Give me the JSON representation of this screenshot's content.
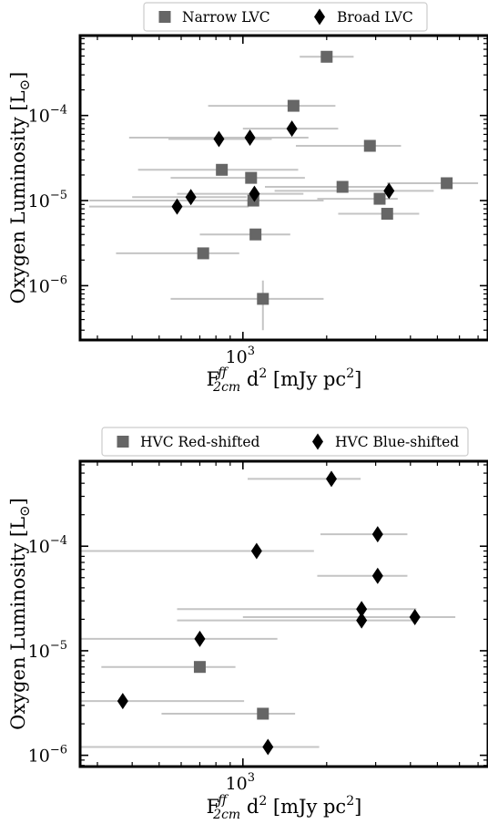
{
  "chart_data": [
    {
      "type": "scatter",
      "xscale": "log",
      "yscale": "log",
      "xlim": [
        260,
        7600
      ],
      "ylim": [
        2.3e-07,
        0.00087
      ],
      "xticks": [
        {
          "value": 1000,
          "base": "10",
          "exp": "3"
        }
      ],
      "yticks": [
        {
          "value": 1e-06,
          "base": "10",
          "exp": "−6"
        },
        {
          "value": 1e-05,
          "base": "10",
          "exp": "−5"
        },
        {
          "value": 0.0001,
          "base": "10",
          "exp": "−4"
        }
      ],
      "ylabel": {
        "main": "Oxygen Luminosity [L",
        "sym": "⊙",
        "close": "]"
      },
      "xlabel": {
        "F": "F",
        "sup": "ff",
        "sub": "2cm",
        "mid": " d",
        "d_exp": "2",
        "unit": " [mJy pc",
        "unit_exp": "2",
        "close": "]"
      },
      "legend_position": "top-center",
      "series": [
        {
          "name": "Narrow LVC",
          "marker": "square",
          "color": "#666666",
          "points": [
            {
              "x": 2000,
              "y": 0.00049,
              "xerr": [
                1600,
                2500
              ]
            },
            {
              "x": 1520,
              "y": 0.00013,
              "xerr": [
                750,
                2150
              ]
            },
            {
              "x": 2860,
              "y": 4.4e-05,
              "xerr": [
                1550,
                3700
              ]
            },
            {
              "x": 840,
              "y": 2.3e-05,
              "xerr": [
                420,
                1580
              ]
            },
            {
              "x": 1070,
              "y": 1.85e-05,
              "xerr": [
                550,
                1670
              ]
            },
            {
              "x": 2280,
              "y": 1.45e-05,
              "xerr": [
                1200,
                3300
              ]
            },
            {
              "x": 5400,
              "y": 1.6e-05,
              "xerr": [
                3300,
                7000
              ]
            },
            {
              "x": 3100,
              "y": 1.05e-05,
              "xerr": [
                1850,
                3600
              ]
            },
            {
              "x": 1090,
              "y": 1e-05,
              "xerr": [
                280,
                1950
              ]
            },
            {
              "x": 3300,
              "y": 7e-06,
              "xerr": [
                2200,
                4300
              ]
            },
            {
              "x": 1110,
              "y": 4e-06,
              "xerr": [
                700,
                1480
              ]
            },
            {
              "x": 720,
              "y": 2.4e-06,
              "xerr": [
                350,
                970
              ]
            },
            {
              "x": 1180,
              "y": 7e-07,
              "xerr": [
                550,
                1950
              ],
              "yerr": [
                3e-07,
                1.15e-06
              ]
            }
          ]
        },
        {
          "name": "Broad LVC",
          "marker": "diamond",
          "color": "#000000",
          "points": [
            {
              "x": 1500,
              "y": 7e-05,
              "xerr": [
                1000,
                2200
              ]
            },
            {
              "x": 820,
              "y": 5.3e-05,
              "xerr": [
                540,
                1270
              ]
            },
            {
              "x": 1060,
              "y": 5.5e-05,
              "xerr": [
                390,
                1720
              ]
            },
            {
              "x": 1100,
              "y": 1.2e-05,
              "xerr": [
                580,
                1650
              ]
            },
            {
              "x": 650,
              "y": 1.1e-05,
              "xerr": [
                400,
                1030
              ]
            },
            {
              "x": 3350,
              "y": 1.3e-05,
              "xerr": [
                1300,
                4850
              ]
            },
            {
              "x": 580,
              "y": 8.5e-06,
              "xerr": [
                280,
                1050
              ]
            }
          ]
        }
      ]
    },
    {
      "type": "scatter",
      "xscale": "log",
      "yscale": "log",
      "xlim": [
        260,
        7600
      ],
      "ylim": [
        7.8e-07,
        0.00065
      ],
      "xticks": [
        {
          "value": 1000,
          "base": "10",
          "exp": "3"
        }
      ],
      "yticks": [
        {
          "value": 1e-06,
          "base": "10",
          "exp": "−6"
        },
        {
          "value": 1e-05,
          "base": "10",
          "exp": "−5"
        },
        {
          "value": 0.0001,
          "base": "10",
          "exp": "−4"
        }
      ],
      "ylabel": {
        "main": "Oxygen Luminosity [L",
        "sym": "⊙",
        "close": "]"
      },
      "xlabel": {
        "F": "F",
        "sup": "ff",
        "sub": "2cm",
        "mid": " d",
        "d_exp": "2",
        "unit": " [mJy pc",
        "unit_exp": "2",
        "close": "]"
      },
      "legend_position": "top-center",
      "series": [
        {
          "name": "HVC Red-shifted",
          "marker": "square",
          "color": "#666666",
          "points": [
            {
              "x": 700,
              "y": 7e-06,
              "xerr": [
                310,
                940
              ]
            },
            {
              "x": 1180,
              "y": 2.5e-06,
              "xerr": [
                510,
                1540
              ]
            }
          ]
        },
        {
          "name": "HVC Blue-shifted",
          "marker": "diamond",
          "color": "#000000",
          "points": [
            {
              "x": 2080,
              "y": 0.00044,
              "xerr": [
                1040,
                2650
              ]
            },
            {
              "x": 3050,
              "y": 0.00013,
              "xerr": [
                1900,
                3900
              ]
            },
            {
              "x": 1120,
              "y": 9e-05,
              "xerr": [
                260,
                1800
              ]
            },
            {
              "x": 3050,
              "y": 5.2e-05,
              "xerr": [
                1850,
                3900
              ]
            },
            {
              "x": 2670,
              "y": 2.5e-05,
              "xerr": [
                580,
                4200
              ]
            },
            {
              "x": 2670,
              "y": 1.95e-05,
              "xerr": [
                580,
                4200
              ]
            },
            {
              "x": 4150,
              "y": 2.1e-05,
              "xerr": [
                1000,
                5800
              ]
            },
            {
              "x": 700,
              "y": 1.3e-05,
              "xerr": [
                260,
                1330
              ]
            },
            {
              "x": 370,
              "y": 3.3e-06,
              "xerr": [
                260,
                1010
              ]
            },
            {
              "x": 1230,
              "y": 1.2e-06,
              "xerr": [
                260,
                1880
              ]
            }
          ]
        }
      ]
    }
  ]
}
